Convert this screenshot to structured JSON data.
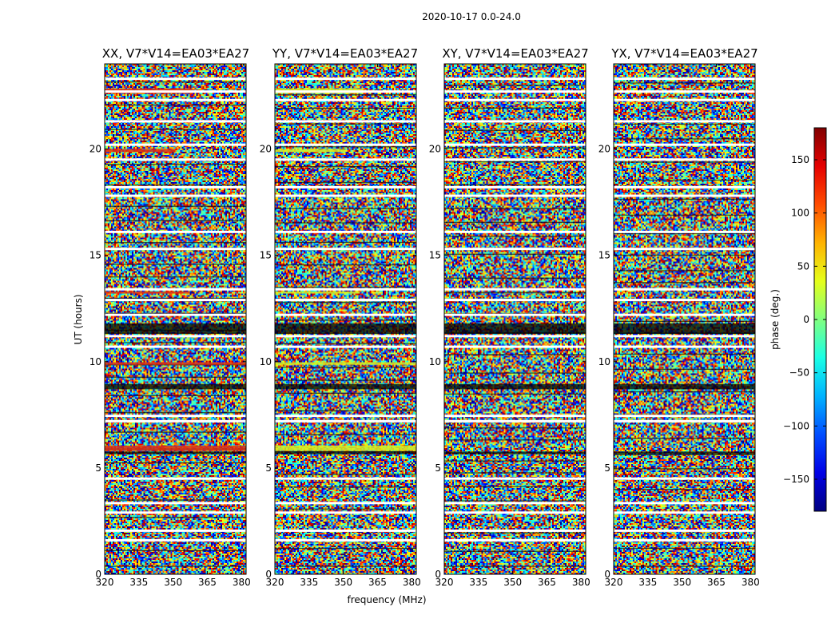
{
  "suptitle": "2020-10-17 0.0-24.0",
  "chart_data": {
    "type": "heatmap",
    "xlabel": "frequency (MHz)",
    "ylabel": "UT (hours)",
    "colorbar_label": "phase (deg.)",
    "xlim": [
      320,
      382
    ],
    "ylim": [
      0,
      24
    ],
    "clim": [
      -180,
      180
    ],
    "x_ticks": [
      320,
      335,
      350,
      365,
      380
    ],
    "y_ticks": [
      0,
      5,
      10,
      15,
      20
    ],
    "colorbar_ticks": [
      -150,
      -100,
      -50,
      0,
      50,
      100,
      150
    ],
    "colormap": "jet",
    "panels": [
      {
        "title": "XX, V7*V14=EA03*EA27",
        "pol": "XX"
      },
      {
        "title": "YY, V7*V14=EA03*EA27",
        "pol": "YY"
      },
      {
        "title": "XY, V7*V14=EA03*EA27",
        "pol": "XY"
      },
      {
        "title": "YX, V7*V14=EA03*EA27",
        "pol": "YX"
      }
    ],
    "flagged_ut_hours": [
      1.6,
      2.05,
      2.9,
      3.35,
      4.5,
      7.2,
      7.45,
      10.7,
      11.2,
      12.2,
      12.9,
      13.4,
      15.3,
      16.1,
      17.8,
      18.2,
      19.5,
      20.2,
      21.3,
      22.3,
      22.7,
      23.3
    ],
    "colors": {
      "flag": "#ffffff",
      "axis": "#000000"
    }
  }
}
